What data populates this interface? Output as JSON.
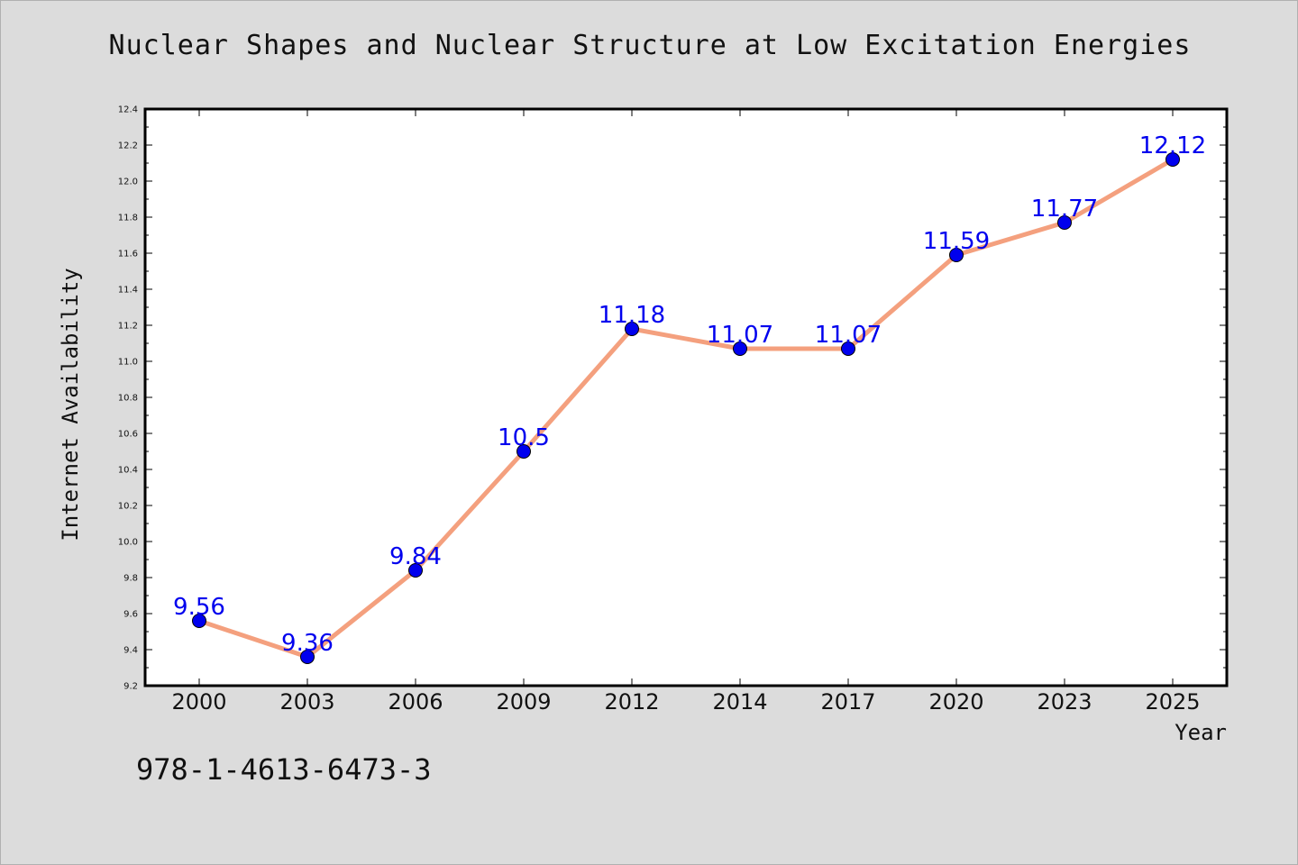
{
  "chart_data": {
    "type": "line",
    "title": "Nuclear Shapes and Nuclear Structure at Low Excitation Energies",
    "xlabel": "Year",
    "ylabel": "Internet Availability",
    "categories": [
      "2000",
      "2003",
      "2006",
      "2009",
      "2012",
      "2014",
      "2017",
      "2020",
      "2023",
      "2025"
    ],
    "series": [
      {
        "values": [
          9.56,
          9.36,
          9.84,
          10.5,
          11.18,
          11.07,
          11.07,
          11.59,
          11.77,
          12.12
        ],
        "data_labels": [
          "9.56",
          "9.36",
          "9.84",
          "10.5",
          "11.18",
          "11.07",
          "11.07",
          "11.59",
          "11.77",
          "12.12"
        ]
      }
    ],
    "ylim": [
      9.2,
      12.4
    ],
    "yticks": [
      "9.2",
      "9.4",
      "9.6",
      "9.8",
      "10.0",
      "10.2",
      "10.4",
      "10.6",
      "10.8",
      "11.0",
      "11.2",
      "11.4",
      "11.6",
      "11.8",
      "12.0",
      "12.2",
      "12.4"
    ],
    "grid": false,
    "legend": "none",
    "colors": {
      "line": "#f4a07e",
      "marker": "#0000ee",
      "label": "#0000ee",
      "background": "#dcdcdc",
      "plot_area": "#ffffff"
    }
  },
  "footer": {
    "isbn": "978-1-4613-6473-3"
  }
}
